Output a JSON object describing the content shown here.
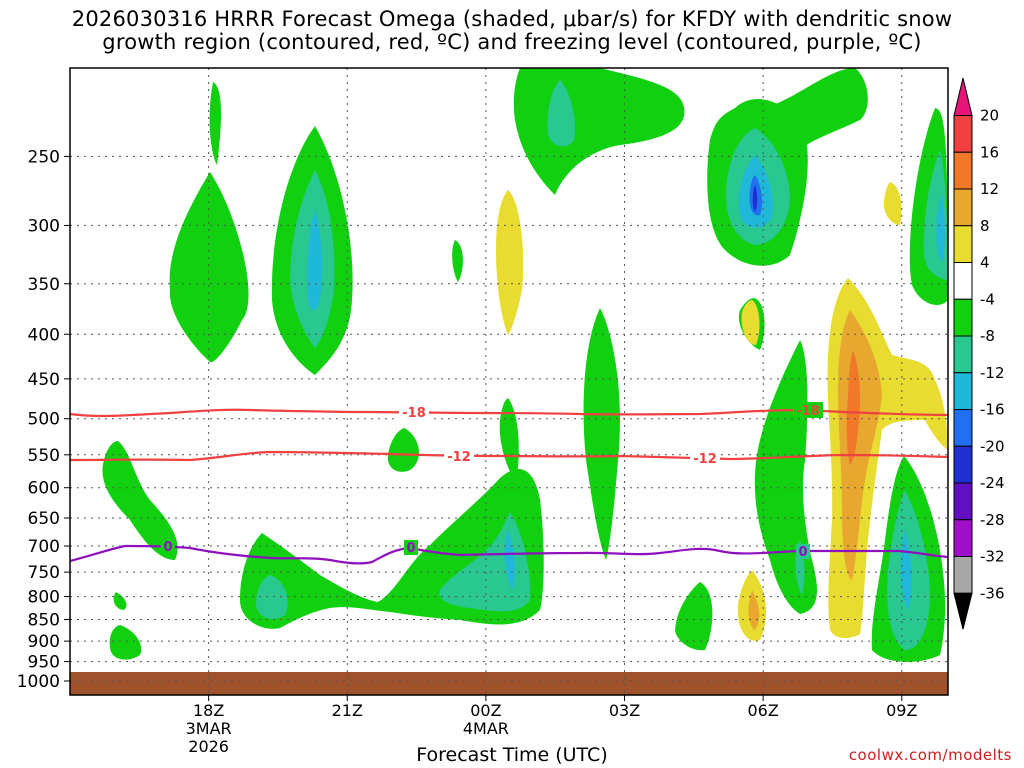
{
  "title": {
    "line1": "2026030316 HRRR Forecast Omega (shaded, μbar/s) for KFDY with dendritic snow",
    "line2": "growth region (contoured, red, ºC) and freezing level (contoured, purple, ºC)"
  },
  "credit": "coolwx.com/modelts",
  "chart_data": {
    "type": "heatmap",
    "xlabel": "Forecast Time (UTC)",
    "ylabel": "",
    "y_ticks": [
      250,
      300,
      350,
      400,
      450,
      500,
      550,
      600,
      650,
      700,
      750,
      800,
      850,
      900,
      950,
      1000
    ],
    "y_range_hpa": [
      200,
      1000
    ],
    "x_range_hours": [
      15,
      10
    ],
    "x_ticks": [
      {
        "hour": 18,
        "label": "18Z",
        "sub1": "3MAR",
        "sub2": "2026"
      },
      {
        "hour": 21,
        "label": "21Z",
        "sub1": "",
        "sub2": ""
      },
      {
        "hour": 24,
        "label": "00Z",
        "sub1": "4MAR",
        "sub2": ""
      },
      {
        "hour": 27,
        "label": "03Z",
        "sub1": "",
        "sub2": ""
      },
      {
        "hour": 30,
        "label": "06Z",
        "sub1": "",
        "sub2": ""
      },
      {
        "hour": 33,
        "label": "09Z",
        "sub1": "",
        "sub2": ""
      }
    ],
    "colorbar": {
      "labels": [
        "20",
        "16",
        "12",
        "8",
        "4",
        "-4",
        "-8",
        "-12",
        "-16",
        "-20",
        "-24",
        "-28",
        "-32",
        "-36"
      ],
      "colors": [
        "#e8147a",
        "#f04040",
        "#f07828",
        "#e8a830",
        "#e8dc30",
        "#ffffff",
        "#10d010",
        "#28c890",
        "#20b8d8",
        "#2070f0",
        "#2030d0",
        "#6010c0",
        "#a010c8",
        "#a8a8a8"
      ]
    },
    "contour_lines": [
      {
        "name": "dendritic-snow-minus18",
        "label": "-18",
        "color": "#f04040"
      },
      {
        "name": "dendritic-snow-minus12",
        "label": "-12",
        "color": "#f04040"
      },
      {
        "name": "freezing-level-0",
        "label": "0",
        "color": "#9010c0"
      }
    ],
    "ground_color": "#a0522d"
  }
}
